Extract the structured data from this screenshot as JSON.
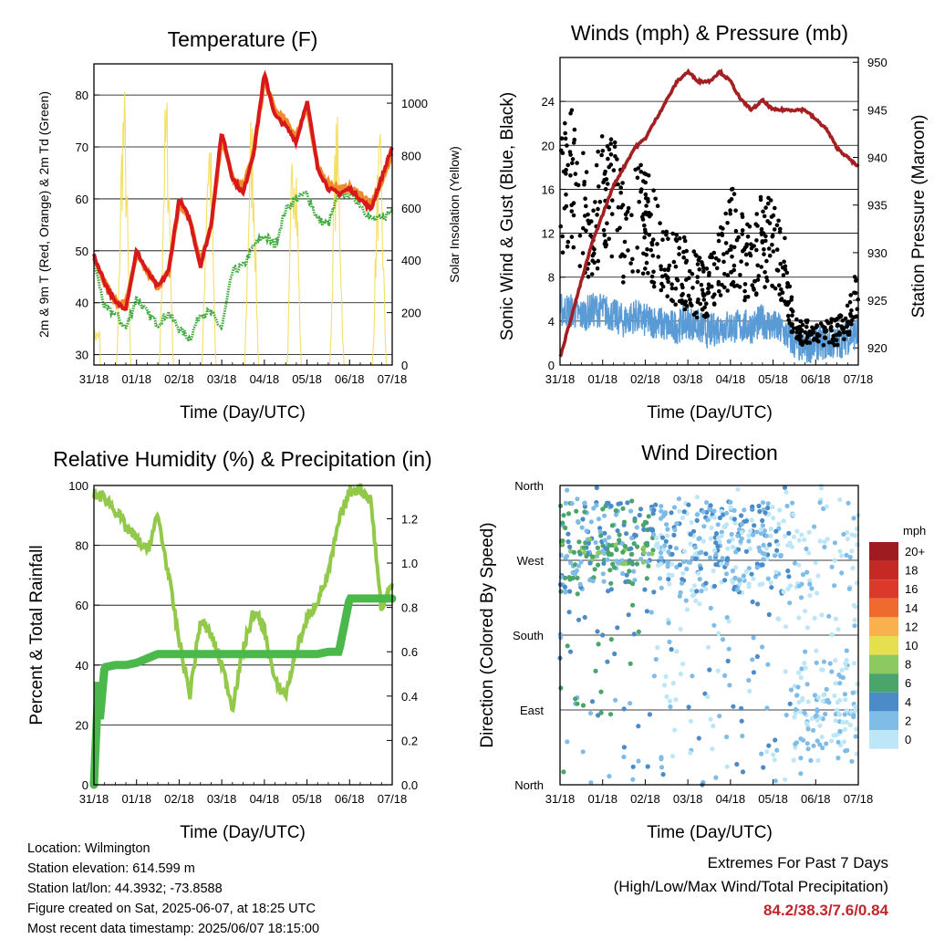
{
  "colors": {
    "temp_2m": "#d7191c",
    "temp_9m": "#f08a2b",
    "dewpoint": "#3eaa3e",
    "insolation": "#f3dc55",
    "wind": "#5a9bd5",
    "gust": "#000000",
    "pressure": "#a31f22",
    "humidity": "#92c94a",
    "precip": "#4bb84b",
    "extremes": "#c0262b"
  },
  "x_ticks": [
    "31/18",
    "01/18",
    "02/18",
    "03/18",
    "04/18",
    "05/18",
    "06/18",
    "07/18"
  ],
  "x_label": "Time (Day/UTC)",
  "chart_data": [
    {
      "type": "line",
      "title": "Temperature (F)",
      "ylabel": "2m & 9m T (Red, Orange) & 2m Td (Green)",
      "ylabel_right": "Solar Insolation (Yellow)",
      "ylim": [
        28,
        86
      ],
      "yticks": [
        30,
        40,
        50,
        60,
        70,
        80
      ],
      "ylim_right": [
        0,
        1150
      ],
      "yticks_right": [
        0,
        200,
        400,
        600,
        800,
        1000
      ],
      "x": [
        0,
        0.25,
        0.5,
        0.75,
        1,
        1.25,
        1.5,
        1.75,
        2,
        2.25,
        2.5,
        2.75,
        3,
        3.25,
        3.5,
        3.75,
        4,
        4.25,
        4.5,
        4.75,
        5,
        5.25,
        5.5,
        5.75,
        6,
        6.25,
        6.5,
        6.75,
        7
      ],
      "series": [
        {
          "name": "2m T",
          "values": [
            49,
            44,
            40,
            39,
            50,
            46,
            43,
            46,
            60,
            56,
            47,
            55,
            73,
            64,
            61,
            69,
            84,
            76,
            74,
            71,
            79,
            66,
            62,
            61,
            62,
            60,
            58,
            64,
            70
          ]
        },
        {
          "name": "9m T",
          "values": [
            49,
            44,
            40,
            40,
            49,
            46,
            43,
            46,
            59,
            56,
            48,
            55,
            72,
            64,
            62,
            69,
            83,
            77,
            75,
            72,
            78,
            66,
            63,
            62,
            62,
            61,
            59,
            63,
            69
          ]
        },
        {
          "name": "2m Td",
          "values": [
            48,
            39,
            38,
            35,
            41,
            38,
            36,
            38,
            35,
            33,
            38,
            38,
            35,
            46,
            47,
            51,
            53,
            51,
            58,
            60,
            61,
            56,
            55,
            61,
            61,
            59,
            56,
            56,
            58
          ]
        },
        {
          "name": "Solar Insolation",
          "values": [
            150,
            0,
            0,
            0,
            1100,
            0,
            0,
            0,
            1080,
            0,
            0,
            0,
            1000,
            0,
            0,
            0,
            1000,
            0,
            0,
            0,
            1020,
            0,
            0,
            0,
            980,
            0,
            0,
            0,
            900
          ]
        }
      ]
    },
    {
      "type": "line",
      "title": "Winds (mph) & Pressure (mb)",
      "ylabel": "Sonic Wind & Gust (Blue, Black)",
      "ylabel_right": "Station Pressure (Maroon)",
      "ylim": [
        0,
        28
      ],
      "yticks": [
        0,
        4,
        8,
        12,
        16,
        20,
        24
      ],
      "ylim_right": [
        918.2,
        950.5
      ],
      "yticks_right": [
        920,
        925,
        930,
        935,
        940,
        945,
        950
      ],
      "x": [
        0,
        0.25,
        0.5,
        0.75,
        1,
        1.25,
        1.5,
        1.75,
        2,
        2.25,
        2.5,
        2.75,
        3,
        3.25,
        3.5,
        3.75,
        4,
        4.25,
        4.5,
        4.75,
        5,
        5.25,
        5.5,
        5.75,
        6,
        6.25,
        6.5,
        6.75,
        7
      ],
      "series": [
        {
          "name": "Sonic Wind",
          "values": [
            5,
            5,
            4.5,
            5,
            5,
            4.5,
            4,
            4.5,
            4,
            4,
            3.5,
            3.5,
            4,
            3.5,
            3,
            3.5,
            3.5,
            3.5,
            3.5,
            4,
            3.5,
            3,
            2,
            1.5,
            2,
            2,
            2,
            2.5,
            3
          ]
        },
        {
          "name": "Gust",
          "values": [
            15,
            18,
            14,
            13,
            15,
            16,
            12,
            14,
            13,
            11,
            9,
            9,
            8,
            7,
            7,
            9,
            12,
            10,
            9,
            12,
            11,
            9,
            3,
            3,
            3,
            3,
            3,
            4,
            7
          ]
        },
        {
          "name": "Station Pressure",
          "values": [
            919,
            923,
            927,
            931,
            934,
            937,
            939,
            941,
            942,
            944,
            946,
            948,
            949,
            948,
            948,
            949,
            948,
            946,
            945,
            946,
            945,
            945,
            945,
            945,
            944,
            943,
            941,
            940,
            939
          ]
        }
      ]
    },
    {
      "type": "line",
      "title": "Relative Humidity (%) & Precipitation (in)",
      "ylabel": "Percent & Total Rainfall",
      "ylim": [
        0,
        100
      ],
      "yticks": [
        0,
        20,
        40,
        60,
        80,
        100
      ],
      "ylim_right": [
        0,
        1.35
      ],
      "yticks_right": [
        "0.0",
        "0.2",
        "0.4",
        "0.6",
        "0.8",
        "1.0",
        "1.2"
      ],
      "x": [
        0,
        0.25,
        0.5,
        0.75,
        1,
        1.25,
        1.5,
        1.75,
        2,
        2.25,
        2.5,
        2.75,
        3,
        3.25,
        3.5,
        3.75,
        4,
        4.25,
        4.5,
        4.75,
        5,
        5.25,
        5.5,
        5.75,
        6,
        6.25,
        6.5,
        6.75,
        7
      ],
      "series": [
        {
          "name": "Relative Humidity",
          "values": [
            97,
            96,
            92,
            86,
            82,
            78,
            90,
            70,
            48,
            30,
            55,
            50,
            40,
            26,
            45,
            58,
            52,
            34,
            30,
            45,
            55,
            62,
            70,
            88,
            98,
            99,
            95,
            58,
            68
          ]
        },
        {
          "name": "Total Rainfall",
          "values": [
            0,
            0.53,
            0.54,
            0.54,
            0.55,
            0.57,
            0.59,
            0.59,
            0.59,
            0.59,
            0.59,
            0.59,
            0.59,
            0.59,
            0.59,
            0.59,
            0.59,
            0.59,
            0.59,
            0.59,
            0.59,
            0.59,
            0.6,
            0.6,
            0.84,
            0.84,
            0.84,
            0.84,
            0.84
          ]
        }
      ]
    },
    {
      "type": "scatter",
      "title": "Wind Direction",
      "ylabel": "Direction (Colored By Speed)",
      "yticks": [
        "North",
        "East",
        "South",
        "West",
        "North"
      ],
      "ylim": [
        0,
        360
      ],
      "legend_title": "mph",
      "legend": [
        "0",
        "2",
        "4",
        "6",
        "8",
        "10",
        "12",
        "14",
        "16",
        "18",
        "20+"
      ],
      "legend_colors": [
        "#bde6f7",
        "#7fbce8",
        "#4a8bc8",
        "#4aa56a",
        "#8dc860",
        "#e6e050",
        "#f8b14e",
        "#ef6a2e",
        "#db3a2a",
        "#c42a23",
        "#9e1b1f"
      ],
      "series_x": [
        0.05,
        0.2,
        0.35,
        0.5,
        0.7,
        0.9,
        1.0,
        1.1,
        1.3,
        1.5,
        1.7,
        1.9,
        2.0,
        2.1,
        2.3,
        2.5,
        2.7,
        2.9,
        3.0,
        3.1,
        3.3,
        3.5,
        3.7,
        3.9,
        4.0,
        4.1,
        4.3,
        4.5,
        4.7,
        4.9,
        5.0,
        5.1,
        5.3,
        5.5,
        5.7,
        5.9,
        6.0,
        6.1,
        6.3,
        6.5,
        6.7,
        6.9
      ],
      "series_y": [
        270,
        275,
        265,
        280,
        260,
        290,
        250,
        275,
        300,
        270,
        285,
        310,
        260,
        300,
        330,
        280,
        240,
        320,
        250,
        290,
        300,
        330,
        270,
        260,
        180,
        310,
        280,
        290,
        260,
        300,
        270,
        250,
        320,
        290,
        240,
        100,
        60,
        200,
        270,
        260,
        90,
        70
      ]
    }
  ],
  "info": {
    "location": "Location: Wilmington",
    "elevation": "Station elevation: 614.599 m",
    "latlon": "Station lat/lon: 44.3932; -73.8588",
    "created": "Figure created on Sat, 2025-06-07, at 18:25 UTC",
    "recent": "Most recent data timestamp: 2025/06/07 18:15:00"
  },
  "extremes": {
    "title": "Extremes For Past 7 Days",
    "subtitle": "(High/Low/Max Wind/Total Precipitation)",
    "values": "84.2/38.3/7.6/0.84"
  }
}
